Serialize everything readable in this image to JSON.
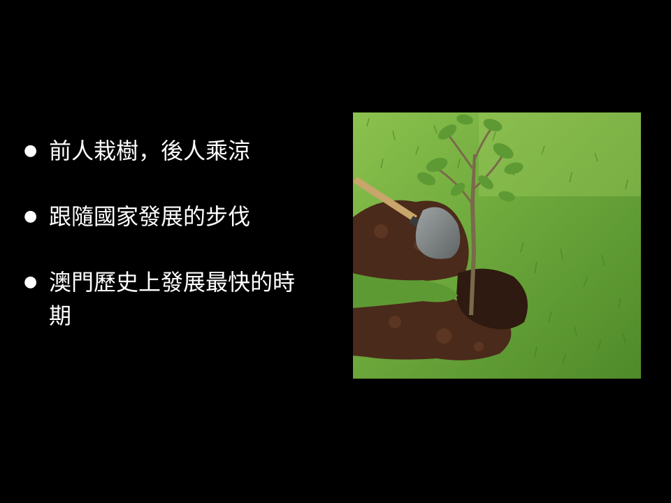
{
  "slide": {
    "bullets": [
      {
        "marker": "●",
        "text": "前人栽樹，後人乘涼"
      },
      {
        "marker": "●",
        "text": "跟隨國家發展的步伐"
      },
      {
        "marker": "●",
        "text": "澳門歷史上發展最快的時期"
      }
    ],
    "photo": {
      "subject": "tree-planting-with-shovel",
      "colors": {
        "grass": "#6aa63a",
        "grass_light": "#a7cf62",
        "soil": "#4a2a1a",
        "soil_dark": "#2e1a10",
        "handle": "#c8a56a",
        "blade": "#7b7f80",
        "trunk": "#7a6a4a",
        "leaves": "#5e9a34"
      }
    }
  }
}
